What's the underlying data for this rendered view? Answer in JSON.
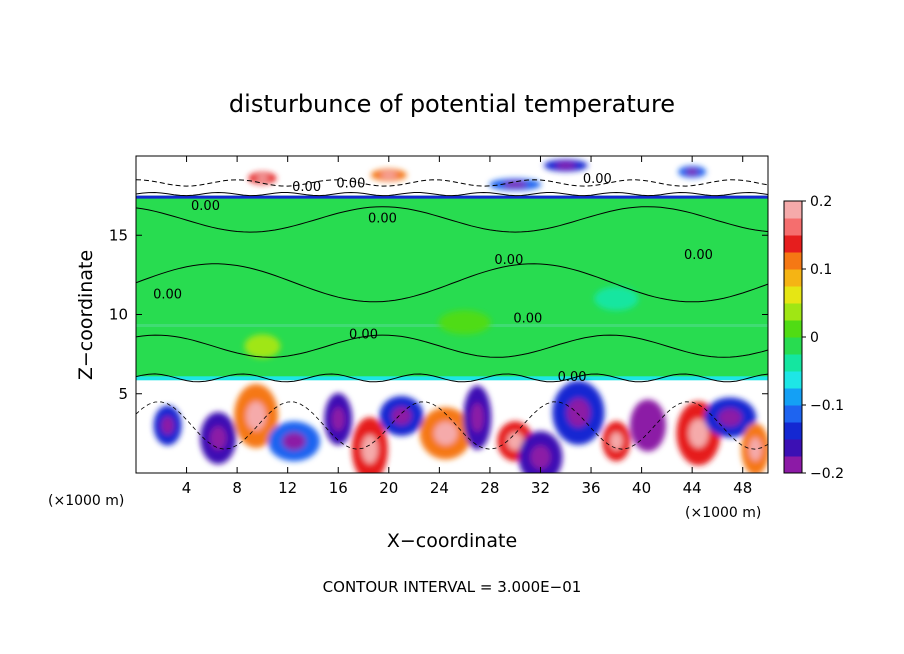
{
  "chart_data": {
    "type": "heatmap",
    "title": "disturbunce of potential temperature",
    "xlabel": "X−coordinate",
    "ylabel": "Z−coordinate",
    "x_unit_left": "(×1000 m)",
    "x_unit_right": "(×1000 m)",
    "xlim": [
      0,
      50
    ],
    "ylim": [
      0,
      20
    ],
    "xticks": [
      4,
      8,
      12,
      16,
      20,
      24,
      28,
      32,
      36,
      40,
      44,
      48
    ],
    "xtick_labels": [
      "4",
      "8",
      "12",
      "16",
      "20",
      "24",
      "28",
      "32",
      "36",
      "40",
      "44",
      "48"
    ],
    "yticks": [
      5,
      10,
      15
    ],
    "ytick_labels": [
      "5",
      "10",
      "15"
    ],
    "colorbar": {
      "range": [
        -0.2,
        0.2
      ],
      "ticks": [
        0.2,
        0.1,
        0,
        -0.1,
        -0.2
      ],
      "tick_labels": [
        "0.2",
        "0.1",
        "0",
        "−0.1",
        "−0.2"
      ],
      "colors": [
        "#8c1aa6",
        "#3c10b4",
        "#1428d2",
        "#1e64f0",
        "#14a0f5",
        "#1ee6e6",
        "#14e6a0",
        "#28dc50",
        "#50dc14",
        "#a0e614",
        "#e6e614",
        "#f5b414",
        "#f57814",
        "#e61e1e",
        "#f56e6e",
        "#f5aaaa"
      ]
    },
    "contour_labels": [
      "0.00",
      "0.00",
      "0.00",
      "0.00",
      "0.00",
      "0.00",
      "0.00",
      "0.00",
      "0.00",
      "0.00",
      "0.00"
    ],
    "footer": "CONTOUR INTERVAL = 3.000E−01",
    "background_value": 0,
    "features": [
      {
        "x": 2.5,
        "z": 3.0,
        "value": -0.15
      },
      {
        "x": 6.5,
        "z": 2.2,
        "value": -0.17
      },
      {
        "x": 9.5,
        "z": 3.6,
        "value": 0.12
      },
      {
        "x": 12.5,
        "z": 2.0,
        "value": -0.12
      },
      {
        "x": 16.0,
        "z": 3.4,
        "value": -0.16
      },
      {
        "x": 18.5,
        "z": 1.5,
        "value": 0.14
      },
      {
        "x": 21.0,
        "z": 3.6,
        "value": -0.14
      },
      {
        "x": 24.5,
        "z": 2.5,
        "value": 0.12
      },
      {
        "x": 27.0,
        "z": 3.5,
        "value": -0.16
      },
      {
        "x": 30.0,
        "z": 2.0,
        "value": 0.15
      },
      {
        "x": 32.0,
        "z": 1.0,
        "value": -0.17
      },
      {
        "x": 35.0,
        "z": 3.8,
        "value": -0.15
      },
      {
        "x": 38.0,
        "z": 2.0,
        "value": 0.13
      },
      {
        "x": 40.5,
        "z": 3.0,
        "value": -0.18
      },
      {
        "x": 44.5,
        "z": 2.5,
        "value": 0.14
      },
      {
        "x": 47.0,
        "z": 3.5,
        "value": -0.15
      },
      {
        "x": 49.0,
        "z": 1.5,
        "value": 0.12
      },
      {
        "x": 10.0,
        "z": 8.0,
        "value": 0.03
      },
      {
        "x": 38.0,
        "z": 11.0,
        "value": -0.04
      },
      {
        "x": 26.0,
        "z": 9.5,
        "value": 0.02
      },
      {
        "x": 10.0,
        "z": 18.6,
        "value": 0.14
      },
      {
        "x": 20.0,
        "z": 18.8,
        "value": 0.12
      },
      {
        "x": 34.0,
        "z": 19.4,
        "value": -0.14
      },
      {
        "x": 30.0,
        "z": 18.2,
        "value": -0.12
      },
      {
        "x": 44.0,
        "z": 19.0,
        "value": -0.11
      }
    ]
  }
}
